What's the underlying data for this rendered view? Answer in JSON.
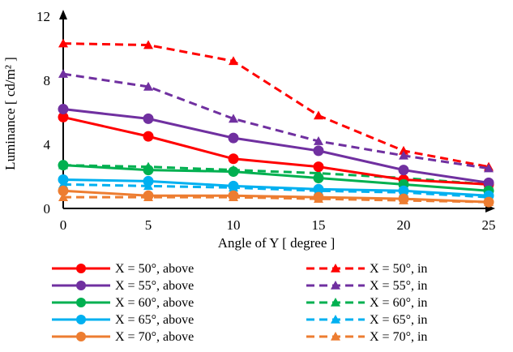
{
  "chart_data": {
    "type": "line",
    "title": "",
    "xlabel": "Angle of Y  [ degree ]",
    "ylabel": "Luminance [ cd/m² ]",
    "xlim": [
      0,
      25
    ],
    "ylim": [
      0,
      12
    ],
    "x_ticks": [
      "0",
      "5",
      "10",
      "15",
      "20",
      "25"
    ],
    "y_ticks": [
      "0",
      "4",
      "8",
      "12"
    ],
    "x": [
      0,
      5,
      10,
      15,
      20,
      25
    ],
    "grid": false,
    "legend_position": "bottom",
    "series": [
      {
        "name": "X = 50°, above",
        "color": "#ff0000",
        "style": "solid",
        "marker": "circle",
        "values": [
          5.7,
          4.5,
          3.1,
          2.6,
          1.8,
          1.5
        ]
      },
      {
        "name": "X = 50°, in",
        "color": "#ff0000",
        "style": "dashed",
        "marker": "triangle",
        "values": [
          10.3,
          10.2,
          9.2,
          5.8,
          3.6,
          2.6
        ]
      },
      {
        "name": "X = 55°, above",
        "color": "#7030a0",
        "style": "solid",
        "marker": "circle",
        "values": [
          6.2,
          5.6,
          4.4,
          3.6,
          2.4,
          1.6
        ]
      },
      {
        "name": "X = 55°, in",
        "color": "#7030a0",
        "style": "dashed",
        "marker": "triangle",
        "values": [
          8.4,
          7.6,
          5.6,
          4.2,
          3.3,
          2.5
        ]
      },
      {
        "name": "X = 60°, above",
        "color": "#00b050",
        "style": "solid",
        "marker": "circle",
        "values": [
          2.7,
          2.4,
          2.3,
          1.9,
          1.5,
          1.1
        ]
      },
      {
        "name": "X = 60°, in",
        "color": "#00b050",
        "style": "dashed",
        "marker": "triangle",
        "values": [
          2.7,
          2.6,
          2.4,
          2.2,
          1.9,
          1.5
        ]
      },
      {
        "name": "X = 65°, above",
        "color": "#00b0f0",
        "style": "solid",
        "marker": "circle",
        "values": [
          1.8,
          1.7,
          1.4,
          1.2,
          1.1,
          0.8
        ]
      },
      {
        "name": "X = 65°, in",
        "color": "#00b0f0",
        "style": "dashed",
        "marker": "triangle",
        "values": [
          1.5,
          1.4,
          1.3,
          1.1,
          1.0,
          0.7
        ]
      },
      {
        "name": "X = 70°, above",
        "color": "#ed7d31",
        "style": "solid",
        "marker": "circle",
        "values": [
          1.1,
          0.8,
          0.8,
          0.7,
          0.6,
          0.4
        ]
      },
      {
        "name": "X = 70°, in",
        "color": "#ed7d31",
        "style": "dashed",
        "marker": "triangle",
        "values": [
          0.7,
          0.7,
          0.7,
          0.6,
          0.5,
          0.4
        ]
      }
    ]
  }
}
